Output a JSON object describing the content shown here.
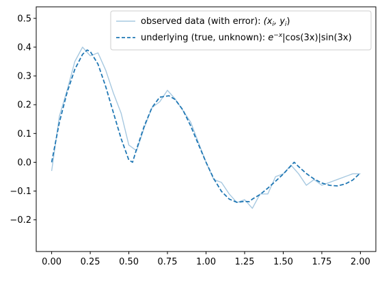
{
  "chart_data": {
    "type": "line",
    "title": "",
    "xlabel": "",
    "ylabel": "",
    "xlim": [
      -0.1,
      2.1
    ],
    "ylim": [
      -0.31,
      0.54
    ],
    "xticks": [
      0.0,
      0.25,
      0.5,
      0.75,
      1.0,
      1.25,
      1.5,
      1.75,
      2.0
    ],
    "xtick_labels": [
      "0.00",
      "0.25",
      "0.50",
      "0.75",
      "1.00",
      "1.25",
      "1.50",
      "1.75",
      "2.00"
    ],
    "yticks": [
      -0.2,
      -0.1,
      0.0,
      0.1,
      0.2,
      0.3,
      0.4,
      0.5
    ],
    "ytick_labels": [
      "−0.2",
      "−0.1",
      "0.0",
      "0.1",
      "0.2",
      "0.3",
      "0.4",
      "0.5"
    ],
    "grid": false,
    "legend_position": "top-right",
    "colors": {
      "observed": "#a6c8e0",
      "underlying": "#1f77b4"
    },
    "series": [
      {
        "name": "observed data (with error): (x_i, y_i)",
        "style": "solid-light",
        "x": [
          0.0,
          0.05,
          0.1,
          0.15,
          0.2,
          0.25,
          0.3,
          0.35,
          0.4,
          0.45,
          0.5,
          0.55,
          0.6,
          0.65,
          0.7,
          0.75,
          0.8,
          0.85,
          0.9,
          0.95,
          1.0,
          1.05,
          1.1,
          1.15,
          1.2,
          1.25,
          1.3,
          1.35,
          1.4,
          1.45,
          1.5,
          1.55,
          1.6,
          1.65,
          1.7,
          1.75,
          1.8,
          1.85,
          1.9,
          1.95,
          2.0
        ],
        "y": [
          -0.03,
          0.16,
          0.25,
          0.35,
          0.4,
          0.37,
          0.38,
          0.32,
          0.24,
          0.17,
          0.06,
          0.04,
          0.12,
          0.19,
          0.21,
          0.25,
          0.22,
          0.18,
          0.14,
          0.07,
          0.0,
          -0.06,
          -0.07,
          -0.11,
          -0.14,
          -0.13,
          -0.16,
          -0.11,
          -0.11,
          -0.05,
          -0.04,
          -0.01,
          -0.04,
          -0.08,
          -0.06,
          -0.08,
          -0.07,
          -0.06,
          -0.05,
          -0.04,
          -0.04
        ]
      },
      {
        "name": "underlying (true, unknown): e^{−x}|cos(3x)|sin(3x)",
        "style": "dashed",
        "x": [
          0.0,
          0.05,
          0.1,
          0.15,
          0.2,
          0.23,
          0.25,
          0.3,
          0.35,
          0.4,
          0.45,
          0.5,
          0.524,
          0.55,
          0.6,
          0.65,
          0.7,
          0.76,
          0.8,
          0.85,
          0.9,
          0.95,
          1.0,
          1.05,
          1.1,
          1.15,
          1.2,
          1.25,
          1.28,
          1.3,
          1.35,
          1.4,
          1.45,
          1.5,
          1.571,
          1.6,
          1.65,
          1.7,
          1.75,
          1.8,
          1.85,
          1.9,
          1.95,
          2.0
        ],
        "y": [
          0.0,
          0.139,
          0.243,
          0.323,
          0.375,
          0.39,
          0.385,
          0.341,
          0.263,
          0.172,
          0.082,
          0.008,
          0.0,
          0.045,
          0.126,
          0.19,
          0.226,
          0.231,
          0.218,
          0.182,
          0.127,
          0.063,
          0.0,
          -0.057,
          -0.101,
          -0.128,
          -0.139,
          -0.136,
          -0.137,
          -0.128,
          -0.112,
          -0.09,
          -0.066,
          -0.041,
          0.0,
          -0.015,
          -0.039,
          -0.058,
          -0.072,
          -0.08,
          -0.082,
          -0.076,
          -0.062,
          -0.037
        ]
      }
    ],
    "legend": {
      "observed_label": "observed data (with error): ",
      "observed_math": "(x",
      "observed_math_sub_i": "i",
      "observed_math_mid": ", y",
      "observed_math_sub_i2": "i",
      "observed_math_end": ")",
      "underlying_label": "underlying (true, unknown): ",
      "underlying_exp_base": "e",
      "underlying_exp_sup": "−x",
      "underlying_rest": "|cos(3x)|sin(3x)"
    }
  }
}
